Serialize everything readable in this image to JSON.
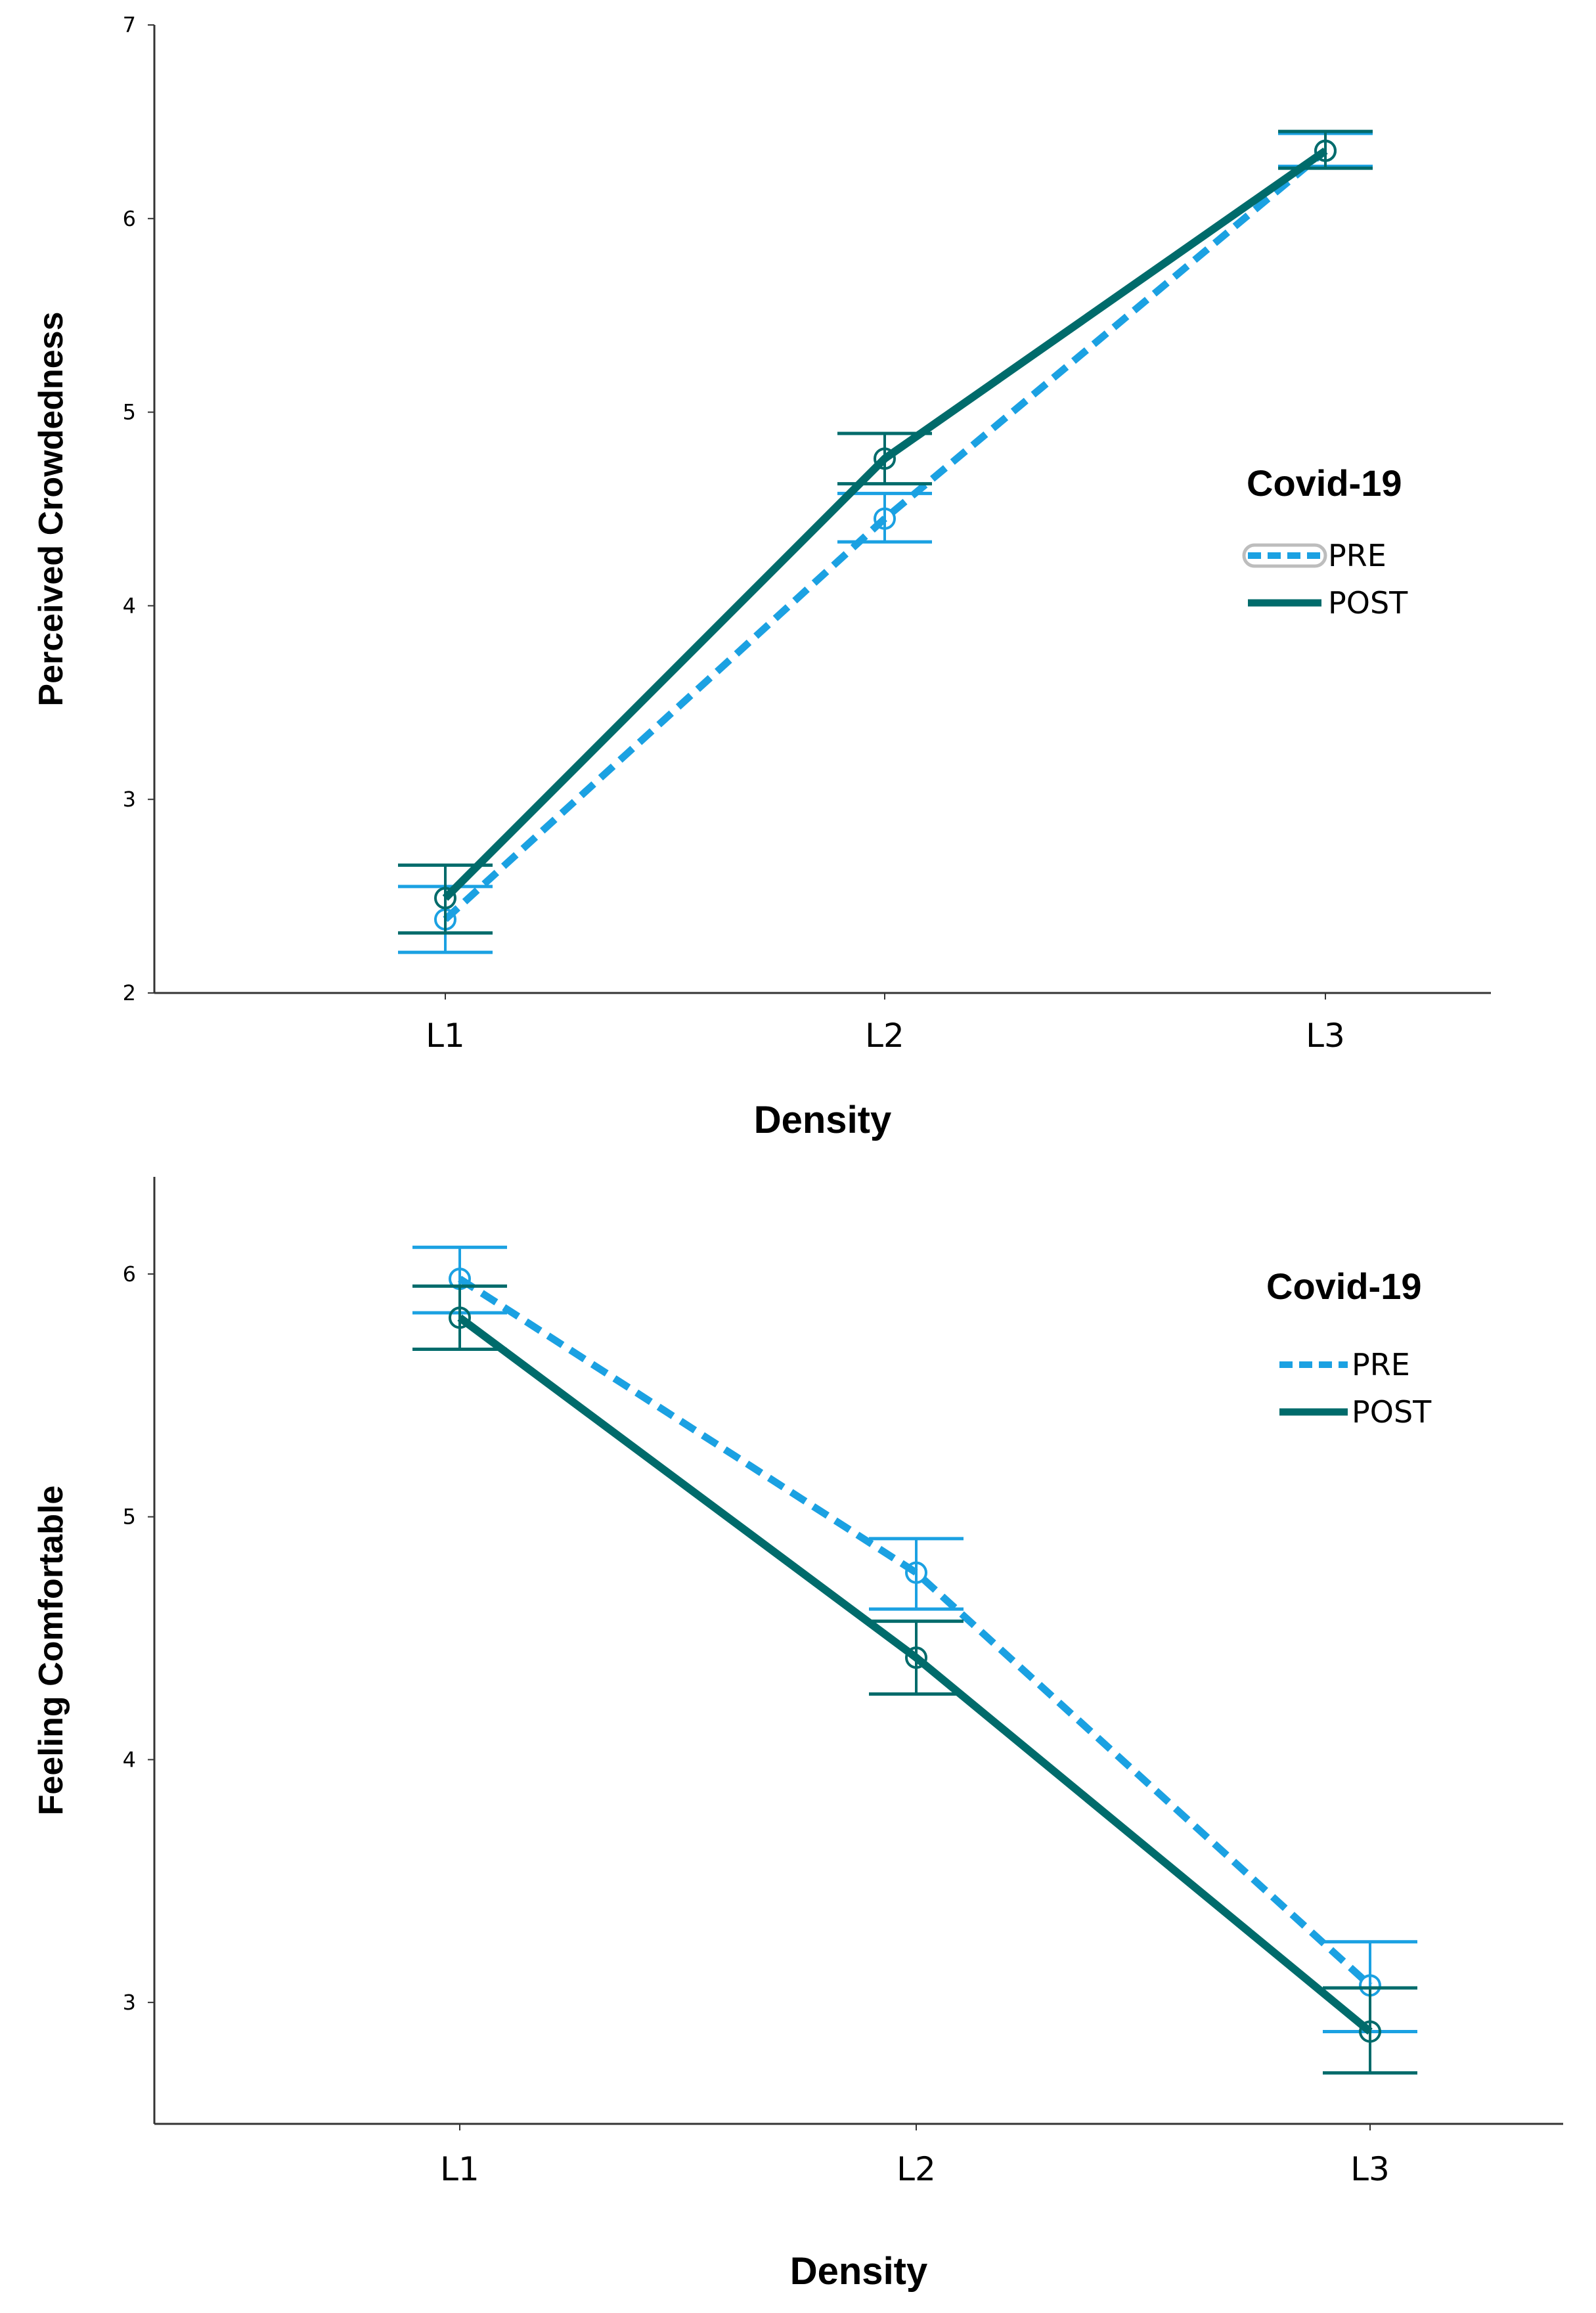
{
  "chart_data": [
    {
      "type": "line",
      "title": "",
      "xlabel": "Density",
      "ylabel": "Perceived Crowdedness",
      "categories": [
        "L1",
        "L2",
        "L3"
      ],
      "ylim": [
        2,
        7
      ],
      "yticks": [
        2,
        3,
        4,
        5,
        6,
        7
      ],
      "legend": {
        "title": "Covid-19",
        "placement": "right"
      },
      "series": [
        {
          "name": "PRE",
          "color": "#1BA1E2",
          "style": "dashed",
          "values": [
            2.38,
            4.45,
            6.35
          ],
          "err_low": [
            2.21,
            4.33,
            6.27
          ],
          "err_high": [
            2.55,
            4.58,
            6.44
          ]
        },
        {
          "name": "POST",
          "color": "#006B6B",
          "style": "solid",
          "values": [
            2.49,
            4.76,
            6.35
          ],
          "err_low": [
            2.31,
            4.63,
            6.26
          ],
          "err_high": [
            2.66,
            4.89,
            6.45
          ]
        }
      ]
    },
    {
      "type": "line",
      "title": "",
      "xlabel": "Density",
      "ylabel": "Feeling Comfortable",
      "categories": [
        "L1",
        "L2",
        "L3"
      ],
      "ylim": [
        2.5,
        6.4
      ],
      "yticks": [
        3,
        4,
        5,
        6
      ],
      "legend": {
        "title": "Covid-19",
        "placement": "top-right"
      },
      "series": [
        {
          "name": "PRE",
          "color": "#1BA1E2",
          "style": "dashed",
          "values": [
            5.98,
            4.77,
            3.07
          ],
          "err_low": [
            5.84,
            4.62,
            2.88
          ],
          "err_high": [
            6.11,
            4.91,
            3.25
          ]
        },
        {
          "name": "POST",
          "color": "#006B6B",
          "style": "solid",
          "values": [
            5.82,
            4.42,
            2.88
          ],
          "err_low": [
            5.69,
            4.27,
            2.71
          ],
          "err_high": [
            5.95,
            4.57,
            3.06
          ]
        }
      ]
    }
  ]
}
